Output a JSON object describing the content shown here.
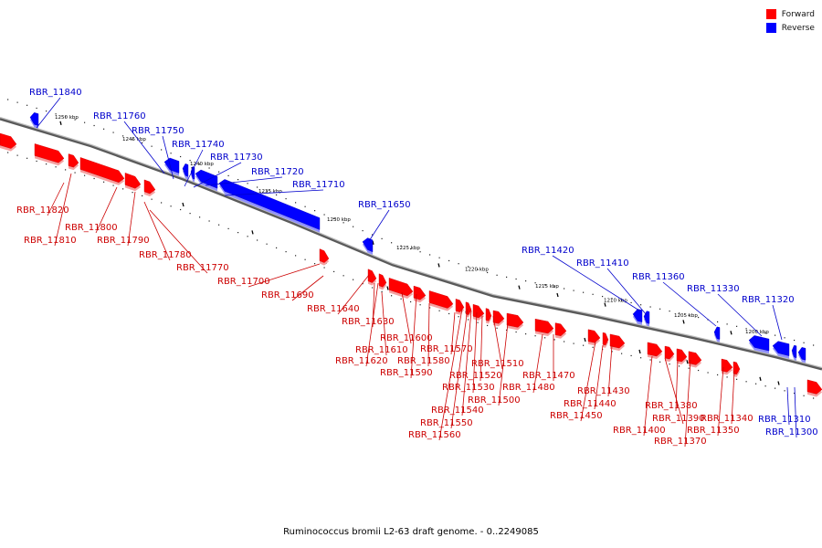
{
  "caption": "Ruminococcus bromii L2-63 draft genome. - 0..2249085",
  "colors": {
    "forward": "#ff0000",
    "reverse": "#0000ff",
    "backbone": "#888888"
  },
  "legend": [
    {
      "name": "legend-forward",
      "label": "Forward",
      "color": "#ff0000"
    },
    {
      "name": "legend-reverse",
      "label": "Reverse",
      "color": "#0000ff"
    }
  ],
  "ticks": [
    "1250 kbp",
    "1245 kbp",
    "1240 kbp",
    "1235 kbp",
    "1230 kbp",
    "1225 kbp",
    "1220 kbp",
    "1215 kbp",
    "1210 kbp",
    "1205 kbp",
    "1200 kbp"
  ],
  "reverse_genes": [
    "RBR_11840",
    "RBR_11760",
    "RBR_11750",
    "RBR_11740",
    "RBR_11730",
    "RBR_11720",
    "RBR_11710",
    "RBR_11650",
    "RBR_11420",
    "RBR_11410",
    "RBR_11360",
    "RBR_11330",
    "RBR_11320",
    "RBR_11310",
    "RBR_11300"
  ],
  "forward_genes": [
    "RBR_11820",
    "RBR_11810",
    "RBR_11800",
    "RBR_11790",
    "RBR_11780",
    "RBR_11770",
    "RBR_11700",
    "RBR_11690",
    "RBR_11640",
    "RBR_11630",
    "RBR_11610",
    "RBR_11620",
    "RBR_11600",
    "RBR_11580",
    "RBR_11590",
    "RBR_11570",
    "RBR_11510",
    "RBR_11520",
    "RBR_11530",
    "RBR_11500",
    "RBR_11540",
    "RBR_11550",
    "RBR_11560",
    "RBR_11480",
    "RBR_11470",
    "RBR_11430",
    "RBR_11440",
    "RBR_11450",
    "RBR_11380",
    "RBR_11390",
    "RBR_11400",
    "RBR_11370",
    "RBR_11340",
    "RBR_11350"
  ]
}
